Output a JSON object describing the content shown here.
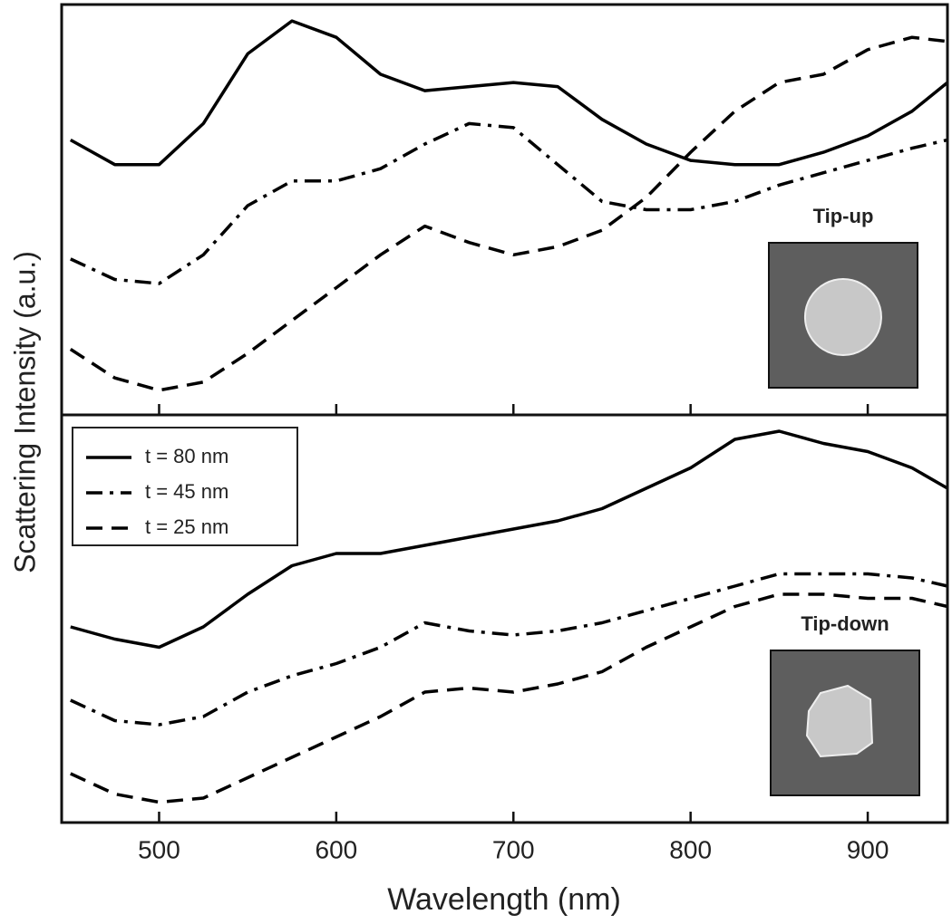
{
  "chart_data": [
    {
      "type": "line",
      "ylabel": "Scattering Intensity (a.u.)",
      "annotation": "Tip-up",
      "x": [
        450,
        475,
        500,
        525,
        550,
        575,
        600,
        625,
        650,
        675,
        700,
        725,
        750,
        775,
        800,
        825,
        850,
        875,
        900,
        925,
        945
      ],
      "xlim": [
        445,
        945
      ],
      "ylim": [
        0,
        100
      ],
      "series": [
        {
          "color": "#000000",
          "dash": "solid",
          "values": [
            67,
            61,
            61,
            71,
            88,
            96,
            92,
            83,
            79,
            80,
            81,
            80,
            72,
            66,
            62,
            61,
            61,
            64,
            68,
            74,
            81
          ]
        },
        {
          "color": "#000000",
          "dash": "dashdot",
          "values": [
            38,
            33,
            32,
            39,
            51,
            57,
            57,
            60,
            66,
            71,
            70,
            61,
            52,
            50,
            50,
            52,
            56,
            59,
            62,
            65,
            67
          ]
        },
        {
          "color": "#000000",
          "dash": "dashed",
          "values": [
            16,
            9,
            6,
            8,
            15,
            23,
            31,
            39,
            46,
            42,
            39,
            41,
            45,
            53,
            64,
            74,
            81,
            83,
            89,
            92,
            91
          ]
        }
      ]
    },
    {
      "type": "line",
      "xlabel": "Wavelength (nm)",
      "annotation": "Tip-down",
      "legend": "upper left",
      "x": [
        450,
        475,
        500,
        525,
        550,
        575,
        600,
        625,
        650,
        675,
        700,
        725,
        750,
        775,
        800,
        825,
        850,
        875,
        900,
        925,
        945
      ],
      "xlim": [
        445,
        945
      ],
      "xticks": [
        500,
        600,
        700,
        800,
        900
      ],
      "ylim": [
        0,
        100
      ],
      "series": [
        {
          "name": "t = 80 nm",
          "color": "#000000",
          "dash": "solid",
          "values": [
            48,
            45,
            43,
            48,
            56,
            63,
            66,
            66,
            68,
            70,
            72,
            74,
            77,
            82,
            87,
            94,
            96,
            93,
            91,
            87,
            82
          ]
        },
        {
          "name": "t = 45 nm",
          "color": "#000000",
          "dash": "dashdot",
          "values": [
            30,
            25,
            24,
            26,
            32,
            36,
            39,
            43,
            49,
            47,
            46,
            47,
            49,
            52,
            55,
            58,
            61,
            61,
            61,
            60,
            58
          ]
        },
        {
          "name": "t = 25 nm",
          "color": "#000000",
          "dash": "dashed",
          "values": [
            12,
            7,
            5,
            6,
            11,
            16,
            21,
            26,
            32,
            33,
            32,
            34,
            37,
            43,
            48,
            53,
            56,
            56,
            55,
            55,
            53
          ]
        }
      ]
    }
  ]
}
